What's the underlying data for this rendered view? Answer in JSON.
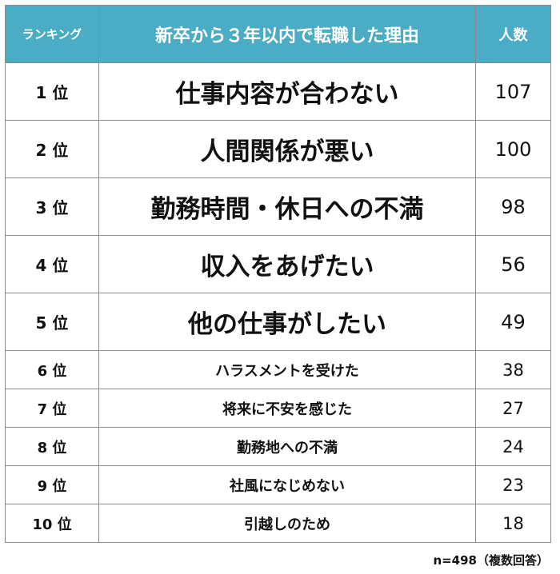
{
  "chart_data": {
    "type": "table",
    "columns": [
      "ランキング",
      "新卒から３年以内で転職した理由",
      "人数"
    ],
    "rows": [
      {
        "rank": "1 位",
        "reason": "仕事内容が合わない",
        "count": 107
      },
      {
        "rank": "2 位",
        "reason": "人間関係が悪い",
        "count": 100
      },
      {
        "rank": "3 位",
        "reason": "勤務時間・休日への不満",
        "count": 98
      },
      {
        "rank": "4 位",
        "reason": "収入をあげたい",
        "count": 56
      },
      {
        "rank": "5 位",
        "reason": "他の仕事がしたい",
        "count": 49
      },
      {
        "rank": "6 位",
        "reason": "ハラスメントを受けた",
        "count": 38
      },
      {
        "rank": "7 位",
        "reason": "将来に不安を感じた",
        "count": 27
      },
      {
        "rank": "8 位",
        "reason": "勤務地への不満",
        "count": 24
      },
      {
        "rank": "9 位",
        "reason": "社風になじめない",
        "count": 23
      },
      {
        "rank": "10 位",
        "reason": "引越しのため",
        "count": 18
      }
    ],
    "note": "n=498（複数回答）",
    "header_color": "#4bacc6"
  }
}
